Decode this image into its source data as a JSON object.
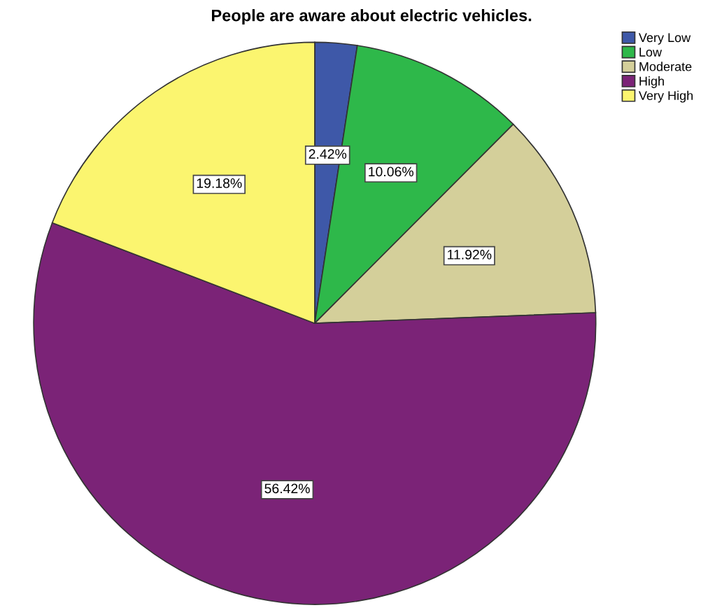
{
  "chart_data": {
    "type": "pie",
    "title": "People are aware about electric vehicles.",
    "categories": [
      "Very Low",
      "Low",
      "Moderate",
      "High",
      "Very High"
    ],
    "values": [
      2.42,
      10.06,
      11.92,
      56.42,
      19.18
    ],
    "colors": [
      "#3e58a8",
      "#2eb84a",
      "#d4cf9a",
      "#7b2377",
      "#fbf56f"
    ],
    "value_labels": [
      "2.42%",
      "10.06%",
      "11.92%",
      "56.42%",
      "19.18%"
    ],
    "legend": "top right"
  }
}
